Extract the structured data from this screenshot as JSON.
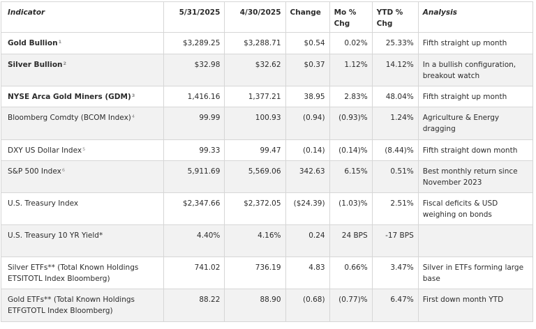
{
  "headers": {
    "indicator": "Indicator",
    "d1": "5/31/2025",
    "d2": "4/30/2025",
    "change": "Change",
    "mo": "Mo % Chg",
    "ytd": "YTD % Chg",
    "analysis": "Analysis"
  },
  "rows": [
    {
      "name": "Gold Bullion",
      "sup": "1",
      "bold": true,
      "v1": "$3,289.25",
      "v2": "$3,288.71",
      "chg": "$0.54",
      "mo": "0.02%",
      "ytd": "25.33%",
      "analysis": "Fifth straight up month"
    },
    {
      "name": "Silver Bullion",
      "sup": "2",
      "bold": true,
      "v1": "$32.98",
      "v2": "$32.62",
      "chg": "$0.37",
      "mo": "1.12%",
      "ytd": "14.12%",
      "analysis": "In a bullish configuration, breakout watch"
    },
    {
      "name": "NYSE Arca Gold Miners (GDM)",
      "sup": "3",
      "bold": true,
      "v1": "1,416.16",
      "v2": "1,377.21",
      "chg": "38.95",
      "mo": "2.83%",
      "ytd": "48.04%",
      "analysis": "Fifth straight up month"
    },
    {
      "name": "Bloomberg Comdty (BCOM Index)",
      "sup": "4",
      "bold": false,
      "v1": "99.99",
      "v2": "100.93",
      "chg": "(0.94)",
      "mo": "(0.93)%",
      "ytd": "1.24%",
      "analysis": "Agriculture & Energy dragging"
    },
    {
      "name": "DXY US Dollar Index",
      "sup": "5",
      "bold": false,
      "v1": "99.33",
      "v2": "99.47",
      "chg": "(0.14)",
      "mo": "(0.14)%",
      "ytd": "(8.44)%",
      "analysis": "Fifth straight down month"
    },
    {
      "name": "S&P 500 Index",
      "sup": "6",
      "bold": false,
      "v1": "5,911.69",
      "v2": "5,569.06",
      "chg": "342.63",
      "mo": "6.15%",
      "ytd": "0.51%",
      "analysis": "Best monthly return since November 2023"
    },
    {
      "name": "U.S. Treasury Index",
      "sup": "",
      "bold": false,
      "v1": "$2,347.66",
      "v2": "$2,372.05",
      "chg": "($24.39)",
      "mo": "(1.03)%",
      "ytd": "2.51%",
      "analysis": "Fiscal deficits & USD weighing on bonds"
    },
    {
      "name": "U.S. Treasury 10 YR Yield*",
      "sup": "",
      "bold": false,
      "v1": "4.40%",
      "v2": "4.16%",
      "chg": "0.24",
      "mo": "24 BPS",
      "ytd": "-17 BPS",
      "analysis": ""
    },
    {
      "name": "Silver ETFs** (Total Known Holdings ETSITOTL Index Bloomberg)",
      "sup": "",
      "bold": false,
      "v1": "741.02",
      "v2": "736.19",
      "chg": "4.83",
      "mo": "0.66%",
      "ytd": "3.47%",
      "analysis": "Silver in ETFs forming large base"
    },
    {
      "name": "Gold ETFs** (Total Known Holdings ETFGTOTL Index Bloomberg)",
      "sup": "",
      "bold": false,
      "v1": "88.22",
      "v2": "88.90",
      "chg": "(0.68)",
      "mo": "(0.77)%",
      "ytd": "6.47%",
      "analysis": "First down month YTD"
    }
  ]
}
